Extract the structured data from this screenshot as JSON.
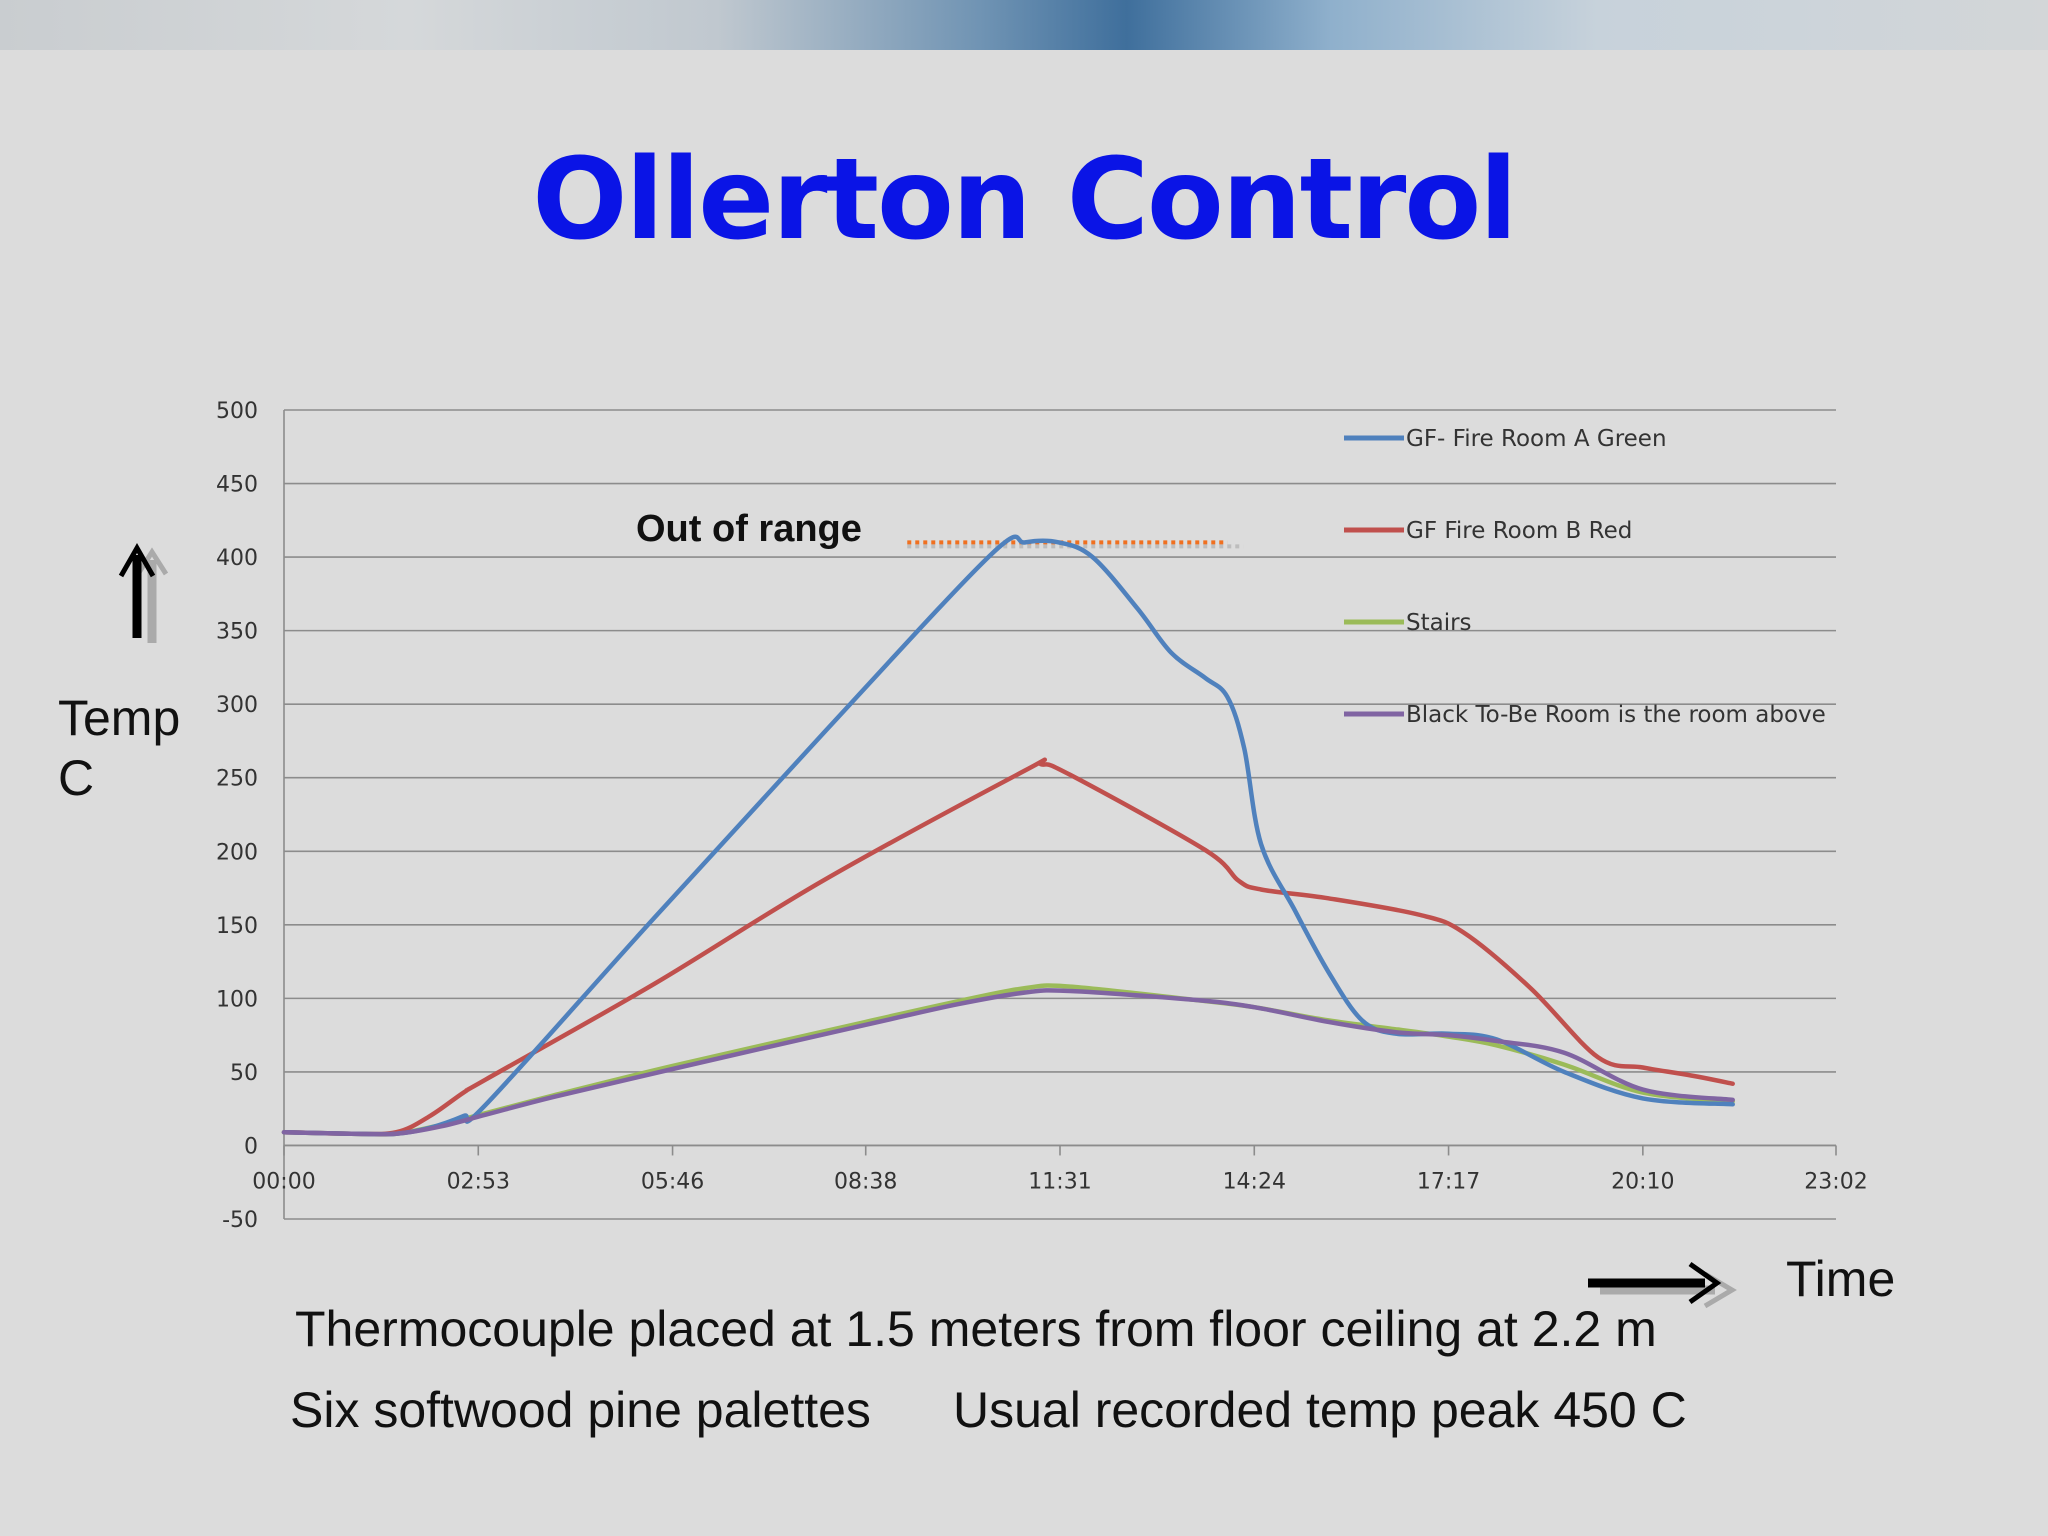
{
  "slide": {
    "title": "Ollerton Control",
    "y_label_line1": "Temp",
    "y_label_line2": "C",
    "x_label": "Time",
    "annotation": "Out of range",
    "caption_1": "Thermocouple placed at 1.5 meters from floor ceiling at 2.2 m",
    "caption_2": "Six softwood pine palettes",
    "caption_3": "Usual recorded temp peak 450 C"
  },
  "colors": {
    "title": "#0a14e6",
    "annotation_line": "#f07020"
  },
  "chart_data": {
    "type": "line",
    "x_unit": "hh:mm",
    "ylim": [
      -50,
      500
    ],
    "xlim": [
      "00:00",
      "23:02"
    ],
    "y_ticks": [
      -50,
      0,
      50,
      100,
      150,
      200,
      250,
      300,
      350,
      400,
      450,
      500
    ],
    "x_ticks": [
      "00:00",
      "02:53",
      "05:46",
      "08:38",
      "11:31",
      "14:24",
      "17:17",
      "20:10",
      "23:02"
    ],
    "grid": true,
    "legend_position": "top-right",
    "annotation": {
      "text": "Out of range",
      "y": 410,
      "x_start": "09:15",
      "x_end": "14:00"
    },
    "series": [
      {
        "name": "GF- Fire Room A Green",
        "color": "#4f81bd",
        "points": [
          [
            "00:00",
            9
          ],
          [
            "01:00",
            8
          ],
          [
            "01:40",
            8
          ],
          [
            "02:10",
            12
          ],
          [
            "02:40",
            20
          ],
          [
            "03:00",
            28
          ],
          [
            "05:30",
            155
          ],
          [
            "08:00",
            280
          ],
          [
            "10:30",
            402
          ],
          [
            "11:00",
            410
          ],
          [
            "11:30",
            410
          ],
          [
            "12:00",
            400
          ],
          [
            "12:40",
            365
          ],
          [
            "13:10",
            335
          ],
          [
            "13:40",
            318
          ],
          [
            "14:00",
            305
          ],
          [
            "14:15",
            270
          ],
          [
            "14:30",
            205
          ],
          [
            "15:00",
            160
          ],
          [
            "15:30",
            118
          ],
          [
            "16:00",
            85
          ],
          [
            "16:30",
            76
          ],
          [
            "17:17",
            76
          ],
          [
            "18:00",
            72
          ],
          [
            "19:00",
            50
          ],
          [
            "20:10",
            32
          ],
          [
            "21:30",
            28
          ]
        ]
      },
      {
        "name": "GF Fire Room B Red",
        "color": "#c0504d",
        "points": [
          [
            "00:00",
            9
          ],
          [
            "01:00",
            8
          ],
          [
            "01:40",
            9
          ],
          [
            "02:10",
            20
          ],
          [
            "02:40",
            36
          ],
          [
            "03:00",
            45
          ],
          [
            "05:30",
            110
          ],
          [
            "08:00",
            180
          ],
          [
            "11:00",
            255
          ],
          [
            "11:15",
            259
          ],
          [
            "11:40",
            252
          ],
          [
            "13:40",
            201
          ],
          [
            "14:10",
            180
          ],
          [
            "14:30",
            174
          ],
          [
            "15:30",
            168
          ],
          [
            "16:50",
            157
          ],
          [
            "17:30",
            145
          ],
          [
            "18:30",
            107
          ],
          [
            "19:30",
            60
          ],
          [
            "20:10",
            53
          ],
          [
            "20:50",
            48
          ],
          [
            "21:30",
            42
          ]
        ]
      },
      {
        "name": "Stairs",
        "color": "#9bbb59",
        "points": [
          [
            "00:00",
            9
          ],
          [
            "01:00",
            8
          ],
          [
            "01:40",
            8
          ],
          [
            "02:20",
            14
          ],
          [
            "03:00",
            22
          ],
          [
            "04:00",
            34
          ],
          [
            "05:46",
            54
          ],
          [
            "08:38",
            84
          ],
          [
            "10:00",
            98
          ],
          [
            "11:00",
            107
          ],
          [
            "11:40",
            108
          ],
          [
            "13:30",
            99
          ],
          [
            "14:24",
            94
          ],
          [
            "15:30",
            85
          ],
          [
            "16:30",
            79
          ],
          [
            "17:17",
            74
          ],
          [
            "18:00",
            68
          ],
          [
            "19:00",
            55
          ],
          [
            "20:10",
            36
          ],
          [
            "21:30",
            30
          ]
        ]
      },
      {
        "name": "Black To-Be Room is the room above",
        "color": "#8064a2",
        "points": [
          [
            "00:00",
            9
          ],
          [
            "01:00",
            8
          ],
          [
            "01:40",
            8
          ],
          [
            "02:20",
            13
          ],
          [
            "03:00",
            21
          ],
          [
            "04:00",
            33
          ],
          [
            "05:46",
            52
          ],
          [
            "08:38",
            82
          ],
          [
            "10:00",
            96
          ],
          [
            "11:00",
            104
          ],
          [
            "11:40",
            105
          ],
          [
            "13:30",
            99
          ],
          [
            "14:24",
            94
          ],
          [
            "15:30",
            84
          ],
          [
            "16:30",
            77
          ],
          [
            "17:17",
            75
          ],
          [
            "18:00",
            71
          ],
          [
            "19:00",
            63
          ],
          [
            "20:10",
            38
          ],
          [
            "21:30",
            31
          ]
        ]
      }
    ]
  }
}
